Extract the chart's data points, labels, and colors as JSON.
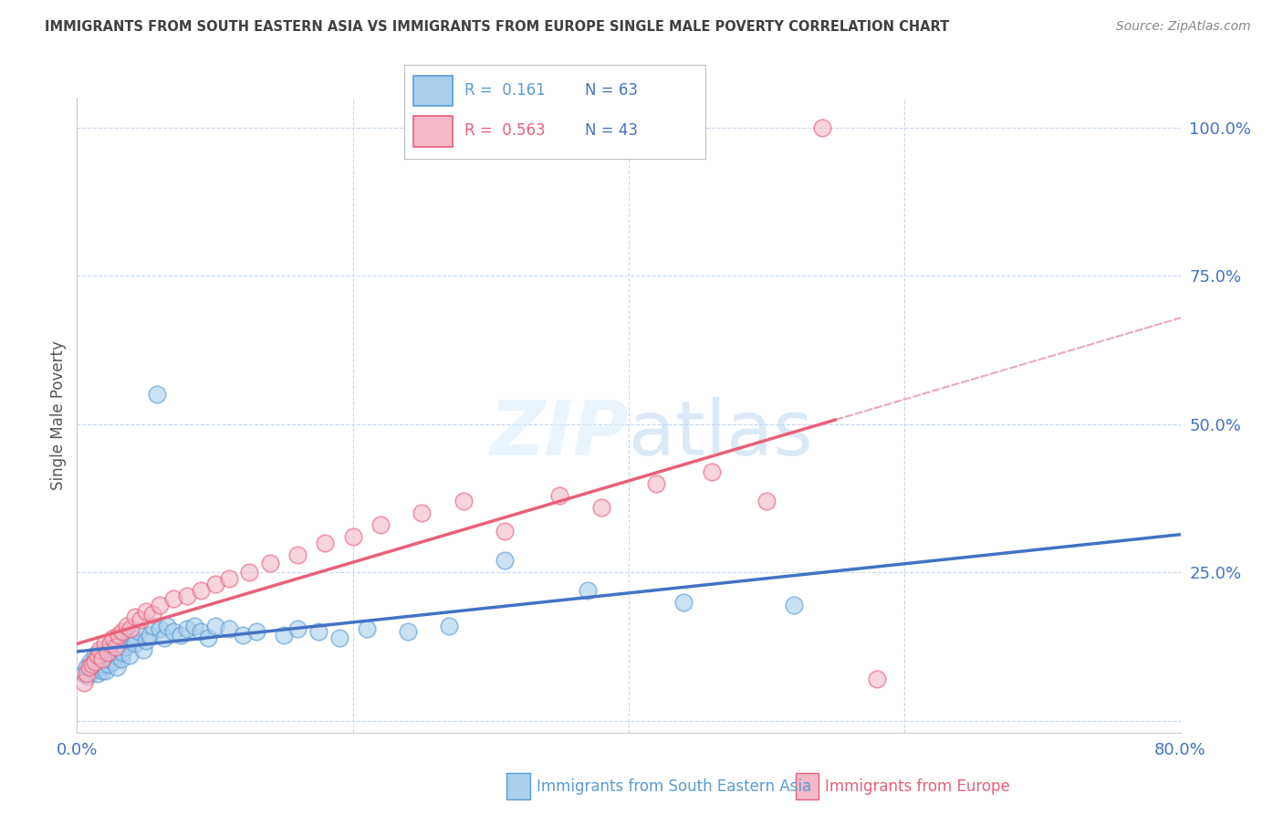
{
  "title": "IMMIGRANTS FROM SOUTH EASTERN ASIA VS IMMIGRANTS FROM EUROPE SINGLE MALE POVERTY CORRELATION CHART",
  "source": "Source: ZipAtlas.com",
  "ylabel": "Single Male Poverty",
  "series1_label": "Immigrants from South Eastern Asia",
  "series2_label": "Immigrants from Europe",
  "R1": 0.161,
  "N1": 63,
  "R2": 0.563,
  "N2": 43,
  "color1_face": "#A8CFEE",
  "color1_edge": "#5B9BD5",
  "color2_face": "#F4B8C8",
  "color2_edge": "#E8607A",
  "line1_color": "#4472C4",
  "line2_color": "#E8607A",
  "dashed_color": "#E8A0B0",
  "axis_color": "#4472C4",
  "title_color": "#404040",
  "source_color": "#888888",
  "background_color": "#FFFFFF",
  "grid_color": "#C5D9EF",
  "xlim": [
    0.0,
    0.8
  ],
  "ylim": [
    -0.02,
    1.05
  ],
  "ytick_positions": [
    0.0,
    0.25,
    0.5,
    0.75,
    1.0
  ],
  "ytick_labels": [
    "",
    "25.0%",
    "50.0%",
    "75.0%",
    "100.0%"
  ],
  "xtick_positions": [
    0.0,
    0.2,
    0.4,
    0.6,
    0.8
  ],
  "xtick_labels": [
    "0.0%",
    "",
    "",
    "",
    "80.0%"
  ],
  "series1_x": [
    0.005,
    0.007,
    0.008,
    0.01,
    0.012,
    0.012,
    0.013,
    0.014,
    0.015,
    0.016,
    0.017,
    0.018,
    0.018,
    0.019,
    0.02,
    0.021,
    0.022,
    0.022,
    0.023,
    0.025,
    0.026,
    0.027,
    0.028,
    0.029,
    0.03,
    0.031,
    0.032,
    0.033,
    0.035,
    0.037,
    0.038,
    0.04,
    0.042,
    0.045,
    0.048,
    0.05,
    0.053,
    0.055,
    0.058,
    0.06,
    0.063,
    0.065,
    0.07,
    0.075,
    0.08,
    0.085,
    0.09,
    0.095,
    0.1,
    0.11,
    0.12,
    0.13,
    0.15,
    0.16,
    0.175,
    0.19,
    0.21,
    0.24,
    0.27,
    0.31,
    0.37,
    0.44,
    0.52
  ],
  "series1_y": [
    0.08,
    0.09,
    0.075,
    0.1,
    0.095,
    0.085,
    0.11,
    0.105,
    0.08,
    0.115,
    0.09,
    0.1,
    0.085,
    0.095,
    0.11,
    0.085,
    0.12,
    0.105,
    0.095,
    0.115,
    0.1,
    0.125,
    0.11,
    0.09,
    0.13,
    0.12,
    0.105,
    0.115,
    0.125,
    0.135,
    0.11,
    0.14,
    0.13,
    0.15,
    0.12,
    0.135,
    0.145,
    0.16,
    0.55,
    0.155,
    0.14,
    0.16,
    0.15,
    0.145,
    0.155,
    0.16,
    0.15,
    0.14,
    0.16,
    0.155,
    0.145,
    0.15,
    0.145,
    0.155,
    0.15,
    0.14,
    0.155,
    0.15,
    0.16,
    0.27,
    0.22,
    0.2,
    0.195
  ],
  "series2_x": [
    0.005,
    0.007,
    0.009,
    0.011,
    0.013,
    0.015,
    0.016,
    0.018,
    0.02,
    0.022,
    0.024,
    0.026,
    0.028,
    0.03,
    0.033,
    0.036,
    0.039,
    0.042,
    0.046,
    0.05,
    0.055,
    0.06,
    0.07,
    0.08,
    0.09,
    0.1,
    0.11,
    0.125,
    0.14,
    0.16,
    0.18,
    0.2,
    0.22,
    0.25,
    0.28,
    0.31,
    0.35,
    0.38,
    0.42,
    0.46,
    0.5,
    0.54,
    0.58
  ],
  "series2_y": [
    0.065,
    0.08,
    0.09,
    0.095,
    0.1,
    0.11,
    0.12,
    0.105,
    0.13,
    0.115,
    0.13,
    0.14,
    0.125,
    0.145,
    0.15,
    0.16,
    0.155,
    0.175,
    0.17,
    0.185,
    0.18,
    0.195,
    0.205,
    0.21,
    0.22,
    0.23,
    0.24,
    0.25,
    0.265,
    0.28,
    0.3,
    0.31,
    0.33,
    0.35,
    0.37,
    0.32,
    0.38,
    0.36,
    0.4,
    0.42,
    0.37,
    1.0,
    0.07
  ],
  "line1_slope": 0.08,
  "line1_intercept": 0.13,
  "line2_slope": 0.8,
  "line2_intercept": 0.04,
  "line2_xend": 0.55,
  "dashed_slope": 0.8,
  "dashed_intercept": 0.04,
  "dashed_xstart": 0.3,
  "dashed_xend": 0.8
}
